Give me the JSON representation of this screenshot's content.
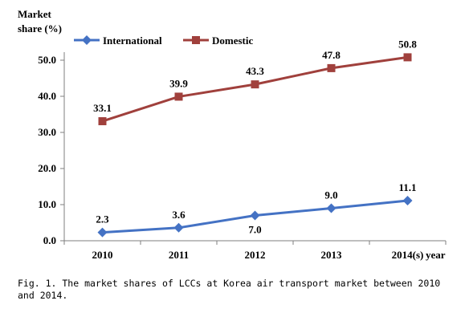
{
  "chart_data": {
    "type": "line",
    "title": "",
    "ylabel_line1": "Market",
    "ylabel_line2": "share (%)",
    "xlabel": "year",
    "ylim": [
      0,
      50
    ],
    "yticks": [
      "0.0",
      "10.0",
      "20.0",
      "30.0",
      "40.0",
      "50.0"
    ],
    "ytick_values": [
      0,
      10,
      20,
      30,
      40,
      50
    ],
    "categories": [
      "2010",
      "2011",
      "2012",
      "2013",
      "2014(s)"
    ],
    "legend_position": "top-left",
    "grid": false,
    "series": [
      {
        "name": "International",
        "color": "#4472C4",
        "marker": "diamond",
        "values": [
          2.3,
          3.6,
          7.0,
          9.0,
          11.1
        ],
        "labels": [
          "2.3",
          "3.6",
          "7.0",
          "9.0",
          "11.1"
        ],
        "label_pos": [
          "above",
          "above",
          "below",
          "above",
          "above"
        ]
      },
      {
        "name": "Domestic",
        "color": "#A0403C",
        "marker": "square",
        "values": [
          33.1,
          39.9,
          43.3,
          47.8,
          50.8
        ],
        "labels": [
          "33.1",
          "39.9",
          "43.3",
          "47.8",
          "50.8"
        ],
        "label_pos": [
          "above",
          "above",
          "above",
          "above",
          "above"
        ]
      }
    ]
  },
  "caption": "Fig. 1.  The market shares of LCCs at Korea air transport market between 2010 and 2014."
}
